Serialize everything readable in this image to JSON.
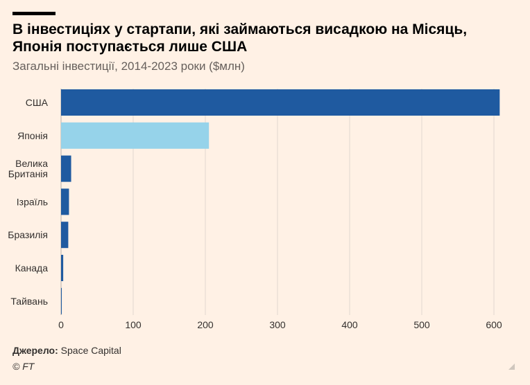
{
  "header": {
    "title": "В інвестиціях у стартапи, які займаються висадкою на Місяць, Японія поступається лише США",
    "subtitle": "Загальні інвестиції, 2014-2023 роки ($млн)"
  },
  "footer": {
    "source_label": "Джерело:",
    "source_value": "Space Capital",
    "copyright": "© FT"
  },
  "colors": {
    "primary_bar": "#1f5aa0",
    "highlight_bar": "#96d3ea",
    "gridline": "#e0d8d0",
    "background": "#fff1e5"
  },
  "chart_data": {
    "type": "bar",
    "orientation": "horizontal",
    "categories": [
      "США",
      "Японія",
      "Велика Британія",
      "Ізраїль",
      "Бразилія",
      "Канада",
      "Тайвань"
    ],
    "category_lines": [
      [
        "США"
      ],
      [
        "Японія"
      ],
      [
        "Велика",
        "Британія"
      ],
      [
        "Ізраїль"
      ],
      [
        "Бразилія"
      ],
      [
        "Канада"
      ],
      [
        "Тайвань"
      ]
    ],
    "values": [
      608,
      205,
      14,
      11,
      10,
      3,
      1
    ],
    "highlight": "Японія",
    "xlim": [
      0,
      600
    ],
    "xticks": [
      0,
      100,
      200,
      300,
      400,
      500,
      600
    ],
    "title": "В інвестиціях у стартапи, які займаються висадкою на Місяць, Японія поступається лише США",
    "subtitle": "Загальні інвестиції, 2014-2023 роки ($млн)",
    "grid": true
  }
}
